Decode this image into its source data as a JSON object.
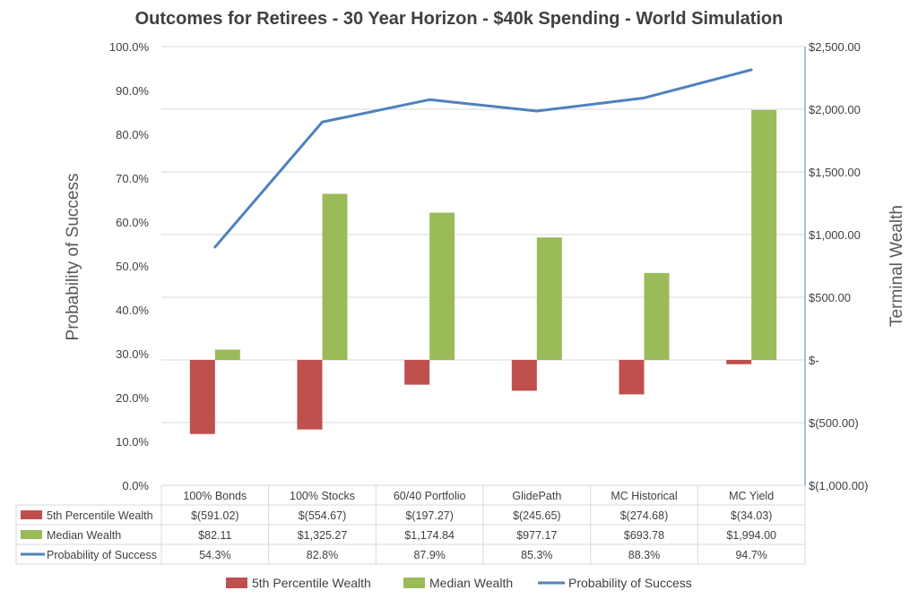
{
  "chart_data": {
    "type": "bar",
    "title": "Outcomes for Retirees - 30 Year Horizon - $40k Spending - World Simulation",
    "categories": [
      "100% Bonds",
      "100% Stocks",
      "60/40 Portfolio",
      "GlidePath",
      "MC Historical",
      "MC Yield"
    ],
    "series": [
      {
        "name": "5th Percentile Wealth",
        "type": "bar",
        "axis": "right",
        "color": "#c0504d",
        "values": [
          -591.02,
          -554.67,
          -197.27,
          -245.65,
          -274.68,
          -34.03
        ],
        "labels": [
          "$(591.02)",
          "$(554.67)",
          "$(197.27)",
          "$(245.65)",
          "$(274.68)",
          "$(34.03)"
        ]
      },
      {
        "name": "Median Wealth",
        "type": "bar",
        "axis": "right",
        "color": "#9bbb59",
        "values": [
          82.11,
          1325.27,
          1174.84,
          977.17,
          693.78,
          1994.0
        ],
        "labels": [
          "$82.11",
          "$1,325.27",
          "$1,174.84",
          "$977.17",
          "$693.78",
          "$1,994.00"
        ]
      },
      {
        "name": "Probability of Success",
        "type": "line",
        "axis": "left",
        "color": "#4f81bd",
        "values": [
          54.3,
          82.8,
          87.9,
          85.3,
          88.3,
          94.7
        ],
        "labels": [
          "54.3%",
          "82.8%",
          "87.9%",
          "85.3%",
          "88.3%",
          "94.7%"
        ]
      }
    ],
    "ylabel": "Probability of Success",
    "ylabel_right": "Terminal Wealth",
    "ylim": [
      0,
      100
    ],
    "ylim_right": [
      -1000,
      2500
    ],
    "yticks": [
      "0.0%",
      "10.0%",
      "20.0%",
      "30.0%",
      "40.0%",
      "50.0%",
      "60.0%",
      "70.0%",
      "80.0%",
      "90.0%",
      "100.0%"
    ],
    "yticks_right": [
      "$(1,000.00)",
      "$(500.00)",
      "$-",
      "$500.00",
      "$1,000.00",
      "$1,500.00",
      "$2,000.00",
      "$2,500.00"
    ],
    "grid": true,
    "legend": "bottom",
    "data_table": true
  }
}
